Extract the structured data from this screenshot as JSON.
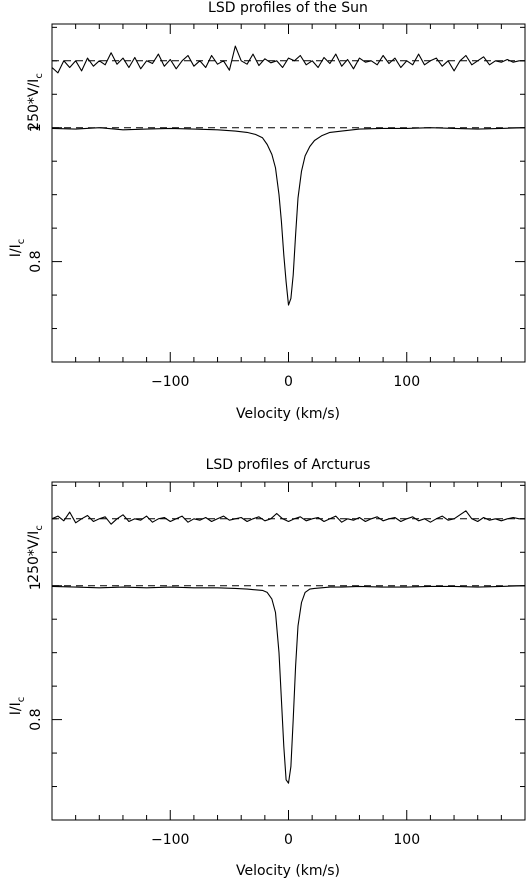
{
  "chart_data": [
    {
      "type": "line",
      "title": "LSD profiles of the Sun",
      "xlabel": "Velocity (km/s)",
      "ylabel_upper": "250*V/I",
      "ylabel_upper_sub": "c",
      "ylabel_lower": "I/I",
      "ylabel_lower_sub": "c",
      "xlim": [
        -200,
        200
      ],
      "ylim": [
        0.65,
        1.155
      ],
      "xticks": [
        -100,
        0,
        100
      ],
      "xtick_labels": [
        "−100",
        "0",
        "100"
      ],
      "yticks": [
        1.0,
        0.8
      ],
      "ytick_labels": [
        "1",
        "0.8"
      ],
      "reference_lines": [
        1.0,
        1.1
      ],
      "series": [
        {
          "role": "intensity",
          "x": [
            -200,
            -180,
            -160,
            -140,
            -120,
            -100,
            -80,
            -60,
            -45,
            -35,
            -28,
            -22,
            -18,
            -14,
            -11,
            -8,
            -6,
            -4,
            -2,
            0,
            2,
            4,
            6,
            8,
            11,
            14,
            18,
            22,
            28,
            35,
            45,
            60,
            80,
            100,
            120,
            140,
            160,
            180,
            200
          ],
          "y": [
            0.999,
            0.998,
            1.0,
            0.997,
            0.998,
            0.999,
            0.998,
            0.997,
            0.995,
            0.993,
            0.99,
            0.985,
            0.975,
            0.96,
            0.94,
            0.9,
            0.86,
            0.81,
            0.77,
            0.735,
            0.745,
            0.78,
            0.84,
            0.895,
            0.935,
            0.958,
            0.972,
            0.981,
            0.988,
            0.993,
            0.995,
            0.998,
            0.999,
            0.999,
            1.0,
            0.999,
            0.998,
            0.999,
            1.0
          ]
        },
        {
          "role": "stokes_v",
          "offset": 1.1,
          "x": [
            -200,
            -195,
            -190,
            -185,
            -180,
            -175,
            -170,
            -165,
            -160,
            -155,
            -150,
            -145,
            -140,
            -135,
            -130,
            -125,
            -120,
            -115,
            -110,
            -105,
            -100,
            -95,
            -90,
            -85,
            -80,
            -75,
            -70,
            -65,
            -60,
            -55,
            -50,
            -45,
            -40,
            -35,
            -30,
            -25,
            -20,
            -15,
            -10,
            -5,
            0,
            5,
            10,
            15,
            20,
            25,
            30,
            35,
            40,
            45,
            50,
            55,
            60,
            65,
            70,
            75,
            80,
            85,
            90,
            95,
            100,
            105,
            110,
            115,
            120,
            125,
            130,
            135,
            140,
            145,
            150,
            155,
            160,
            165,
            170,
            175,
            180,
            185,
            190,
            195,
            200
          ],
          "y": [
            1.09,
            1.082,
            1.1,
            1.09,
            1.1,
            1.085,
            1.104,
            1.092,
            1.1,
            1.094,
            1.112,
            1.095,
            1.104,
            1.09,
            1.105,
            1.088,
            1.1,
            1.096,
            1.11,
            1.092,
            1.102,
            1.088,
            1.1,
            1.108,
            1.092,
            1.1,
            1.09,
            1.108,
            1.095,
            1.1,
            1.086,
            1.122,
            1.1,
            1.095,
            1.11,
            1.093,
            1.103,
            1.097,
            1.1,
            1.09,
            1.104,
            1.1,
            1.108,
            1.094,
            1.1,
            1.09,
            1.105,
            1.096,
            1.11,
            1.092,
            1.102,
            1.088,
            1.104,
            1.098,
            1.1,
            1.094,
            1.108,
            1.096,
            1.104,
            1.09,
            1.1,
            1.094,
            1.11,
            1.094,
            1.1,
            1.104,
            1.092,
            1.1,
            1.085,
            1.1,
            1.108,
            1.094,
            1.1,
            1.106,
            1.094,
            1.1,
            1.098,
            1.102,
            1.098,
            1.1,
            1.1
          ]
        }
      ]
    },
    {
      "type": "line",
      "title": "LSD profiles of Arcturus",
      "xlabel": "Velocity (km/s)",
      "ylabel_upper": "250*V/I",
      "ylabel_upper_sub": "c",
      "ylabel_lower": "I/I",
      "ylabel_lower_sub": "c",
      "xlim": [
        -200,
        200
      ],
      "ylim": [
        0.65,
        1.155
      ],
      "xticks": [
        -100,
        0,
        100
      ],
      "xtick_labels": [
        "−100",
        "0",
        "100"
      ],
      "yticks": [
        1.0,
        0.8
      ],
      "ytick_labels": [
        "1",
        "0.8"
      ],
      "reference_lines": [
        1.0,
        1.1
      ],
      "series": [
        {
          "role": "intensity",
          "x": [
            -200,
            -180,
            -160,
            -140,
            -120,
            -100,
            -80,
            -60,
            -45,
            -35,
            -28,
            -22,
            -18,
            -14,
            -11,
            -8,
            -6,
            -4,
            -2,
            0,
            2,
            4,
            6,
            8,
            11,
            14,
            18,
            22,
            28,
            35,
            45,
            60,
            80,
            100,
            120,
            140,
            160,
            180,
            200
          ],
          "y": [
            0.999,
            0.998,
            0.997,
            0.998,
            0.997,
            0.998,
            0.997,
            0.997,
            0.996,
            0.995,
            0.994,
            0.993,
            0.99,
            0.98,
            0.96,
            0.9,
            0.83,
            0.76,
            0.71,
            0.705,
            0.73,
            0.8,
            0.88,
            0.94,
            0.975,
            0.99,
            0.995,
            0.996,
            0.997,
            0.998,
            0.998,
            0.999,
            0.998,
            0.998,
            0.999,
            0.999,
            0.998,
            0.999,
            1.0
          ]
        },
        {
          "role": "stokes_v",
          "offset": 1.1,
          "x": [
            -200,
            -195,
            -190,
            -185,
            -180,
            -175,
            -170,
            -165,
            -160,
            -155,
            -150,
            -145,
            -140,
            -135,
            -130,
            -125,
            -120,
            -115,
            -110,
            -105,
            -100,
            -95,
            -90,
            -85,
            -80,
            -75,
            -70,
            -65,
            -60,
            -55,
            -50,
            -45,
            -40,
            -35,
            -30,
            -25,
            -20,
            -15,
            -10,
            -5,
            0,
            5,
            10,
            15,
            20,
            25,
            30,
            35,
            40,
            45,
            50,
            55,
            60,
            65,
            70,
            75,
            80,
            85,
            90,
            95,
            100,
            105,
            110,
            115,
            120,
            125,
            130,
            135,
            140,
            145,
            150,
            155,
            160,
            165,
            170,
            175,
            180,
            185,
            190,
            195,
            200
          ],
          "y": [
            1.1,
            1.104,
            1.097,
            1.11,
            1.094,
            1.1,
            1.105,
            1.096,
            1.1,
            1.103,
            1.092,
            1.1,
            1.106,
            1.096,
            1.1,
            1.098,
            1.104,
            1.095,
            1.1,
            1.102,
            1.096,
            1.1,
            1.104,
            1.095,
            1.1,
            1.098,
            1.102,
            1.096,
            1.1,
            1.104,
            1.098,
            1.1,
            1.102,
            1.096,
            1.1,
            1.103,
            1.097,
            1.1,
            1.108,
            1.1,
            1.096,
            1.1,
            1.103,
            1.097,
            1.1,
            1.102,
            1.096,
            1.1,
            1.104,
            1.095,
            1.1,
            1.098,
            1.102,
            1.096,
            1.1,
            1.103,
            1.097,
            1.1,
            1.102,
            1.096,
            1.1,
            1.103,
            1.097,
            1.1,
            1.095,
            1.1,
            1.104,
            1.098,
            1.1,
            1.106,
            1.112,
            1.1,
            1.096,
            1.102,
            1.098,
            1.1,
            1.097,
            1.1,
            1.102,
            1.1,
            1.1
          ]
        }
      ]
    }
  ]
}
